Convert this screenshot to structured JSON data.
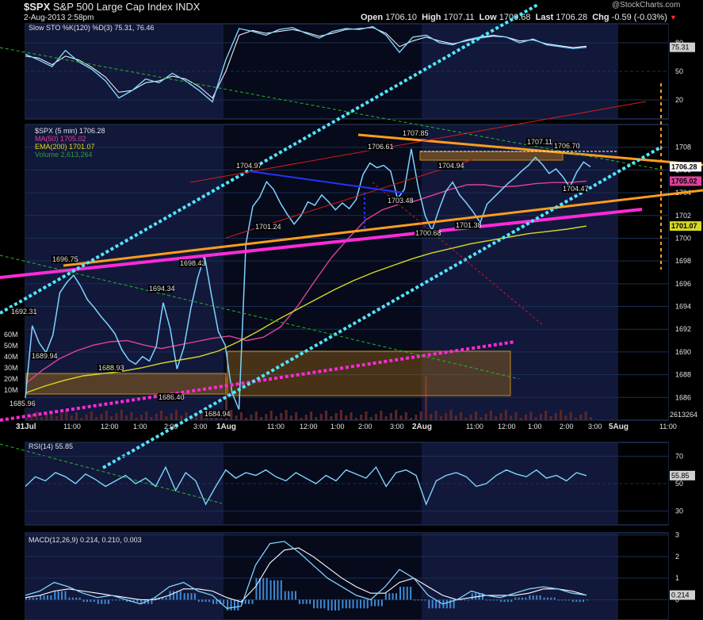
{
  "header": {
    "symbol": "$SPX",
    "name": "S&P 500 Large Cap Index",
    "exchange": "INDX",
    "date_time": "2-Aug-2013 2:58pm",
    "open_label": "Open",
    "open": "1706.10",
    "high_label": "High",
    "high": "1707.11",
    "low_label": "Low",
    "low": "1700.68",
    "last_label": "Last",
    "last": "1706.28",
    "chg_label": "Chg",
    "chg": "-0.59 (-0.03%)",
    "watermark": "@StockCharts.com"
  },
  "colors": {
    "background": "#000000",
    "price": "#7fd3ff",
    "ma50": "#e0409a",
    "ema200": "#d8d820",
    "trend_orange": "#ff9d1c",
    "trend_magenta": "#ff2ad8",
    "channel_cyan": "#4fe6ff",
    "grid": "#1b2f55"
  },
  "chart_data": [
    {
      "type": "line",
      "title": "Slow STO %K(120) %D(3) 75.31, 76.46",
      "ylim": [
        0,
        100
      ],
      "y_ticks": [
        "80",
        "50",
        "20"
      ],
      "last_value": "75.31",
      "series": [
        {
          "name": "%K(120)",
          "values": [
            68,
            62,
            55,
            72,
            60,
            52,
            40,
            22,
            30,
            42,
            38,
            48,
            40,
            30,
            18,
            62,
            95,
            92,
            88,
            94,
            96,
            90,
            85,
            92,
            95,
            94,
            97,
            88,
            70,
            86,
            88,
            80,
            78,
            83,
            86,
            88,
            86,
            80,
            84,
            78,
            76,
            74,
            75.31
          ]
        },
        {
          "name": "%D(3)",
          "values": [
            66,
            64,
            57,
            66,
            62,
            54,
            44,
            28,
            30,
            38,
            40,
            45,
            42,
            34,
            22,
            50,
            88,
            93,
            90,
            92,
            94,
            91,
            87,
            90,
            94,
            95,
            96,
            90,
            76,
            82,
            86,
            82,
            79,
            82,
            85,
            87,
            86,
            82,
            83,
            79,
            77,
            75,
            76.46
          ]
        }
      ]
    },
    {
      "type": "line",
      "title": "$SPX (5 min) 1706.28",
      "ylim": [
        1684,
        1710
      ],
      "y_ticks": [
        "1708",
        "1706",
        "1704",
        "1702",
        "1700",
        "1698",
        "1696",
        "1694",
        "1692",
        "1690",
        "1688",
        "1686"
      ],
      "x_labels": [
        "31Jul",
        "11:00",
        "12:00",
        "1:00",
        "2:00",
        "3:00",
        "1Aug",
        "11:00",
        "12:00",
        "1:00",
        "2:00",
        "3:00",
        "2Aug",
        "11:00",
        "12:00",
        "1:00",
        "2:00",
        "3:00",
        "5Aug",
        "11:00"
      ],
      "legend": [
        "$SPX (5 min) 1706.28",
        "MA(50) 1705.02",
        "EMA(200) 1701.07",
        "Volume 2,613,264"
      ],
      "price_tags": [
        "1706.28",
        "1705.02",
        "1701.07"
      ],
      "volume_tags": [
        "60M",
        "50M",
        "40M",
        "30M",
        "20M",
        "10M",
        "2613264"
      ],
      "annotations": [
        "1692.31",
        "1689.94",
        "1696.75",
        "1688.93",
        "1694.34",
        "1698.43",
        "1686.40",
        "1685.96",
        "1684.94",
        "1704.97",
        "1701.24",
        "1706.61",
        "1707.85",
        "1703.48",
        "1704.94",
        "1700.68",
        "1701.38",
        "1707.11",
        "1706.70",
        "1704.47"
      ],
      "series": [
        {
          "name": "$SPX",
          "x": [
            0,
            2,
            4,
            6,
            8,
            10,
            12,
            14,
            16,
            18,
            20,
            22,
            24,
            26,
            28,
            30,
            32,
            34,
            36,
            38,
            40,
            42,
            44,
            46,
            48,
            50,
            52,
            54,
            56,
            58,
            60,
            62,
            64,
            66,
            68,
            70,
            72,
            74,
            76,
            78,
            80,
            82,
            84,
            86,
            88,
            90,
            92,
            94,
            96,
            98,
            100,
            102,
            104,
            106,
            108,
            110,
            112,
            114,
            116,
            118,
            120,
            122,
            124,
            126,
            128,
            130,
            132,
            134,
            136,
            138,
            140,
            142,
            144,
            146,
            148,
            150,
            152,
            154,
            156,
            158,
            160,
            162,
            164,
            166,
            168,
            170,
            172,
            174,
            176,
            178,
            180,
            182,
            184,
            186,
            188,
            190,
            192,
            194,
            196,
            198,
            200,
            202,
            204,
            206,
            208,
            210,
            212,
            214,
            216,
            218,
            220,
            222,
            224,
            226,
            228,
            230,
            232,
            234
          ],
          "values": [
            1685.96,
            1692.31,
            1690.8,
            1689.94,
            1691.5,
            1695.2,
            1696.1,
            1696.75,
            1695.8,
            1694.6,
            1693.9,
            1693.1,
            1692.4,
            1691.6,
            1690.2,
            1689.3,
            1688.93,
            1689.6,
            1689.2,
            1690.5,
            1694.34,
            1692.1,
            1688.5,
            1690.4,
            1693.8,
            1696.5,
            1698.43,
            1695.0,
            1691.8,
            1690.6,
            1686.4,
            1684.94,
            1699.5,
            1702.8,
            1703.6,
            1704.97,
            1704.3,
            1703.1,
            1702.1,
            1701.24,
            1702.0,
            1703.2,
            1702.9,
            1703.8,
            1703.2,
            1702.5,
            1703.1,
            1702.6,
            1703.4,
            1705.6,
            1706.61,
            1706.2,
            1706.4,
            1705.9,
            1703.48,
            1704.3,
            1707.85,
            1704.5,
            1702.0,
            1700.68,
            1702.5,
            1704.1,
            1704.94,
            1703.8,
            1703.1,
            1702.3,
            1701.38,
            1703.0,
            1703.6,
            1704.2,
            1704.8,
            1705.3,
            1705.9,
            1706.4,
            1707.11,
            1706.5,
            1705.7,
            1706.1,
            1705.4,
            1704.47,
            1705.8,
            1706.7,
            1706.28,
            1706.28,
            1706.28,
            1706.28,
            1706.28,
            1706.28,
            1706.28,
            1706.28,
            1706.28,
            1706.28,
            1706.28,
            1706.28,
            1706.28,
            1706.28,
            1706.28,
            1706.28,
            1706.28,
            1706.28,
            1706.28,
            1706.28,
            1706.28,
            1706.28,
            1706.28,
            1706.28,
            1706.28,
            1706.28,
            1706.28,
            1706.28,
            1706.28,
            1706.28,
            1706.28,
            1706.28,
            1706.28,
            1706.28,
            1706.28,
            1706.28
          ]
        },
        {
          "name": "MA(50)",
          "values": [
            1687.2,
            1688.4,
            1689.4,
            1690.1,
            1690.6,
            1690.9,
            1691.0,
            1690.6,
            1690.3,
            1690.6,
            1690.9,
            1691.2,
            1691.4,
            1691.0,
            1691.3,
            1692.2,
            1694.0,
            1696.2,
            1698.3,
            1700.0,
            1701.6,
            1702.5,
            1703.0,
            1703.3,
            1703.8,
            1704.3,
            1704.7,
            1704.7,
            1704.5,
            1704.6,
            1704.8,
            1704.9,
            1704.9,
            1705.02
          ]
        },
        {
          "name": "EMA(200)",
          "values": [
            1686.4,
            1687.0,
            1687.5,
            1687.9,
            1688.1,
            1688.3,
            1688.6,
            1689.0,
            1689.3,
            1689.6,
            1690.1,
            1690.9,
            1691.8,
            1692.8,
            1693.7,
            1694.6,
            1695.5,
            1696.3,
            1697.0,
            1697.6,
            1698.2,
            1698.7,
            1699.1,
            1699.5,
            1699.8,
            1700.1,
            1700.4,
            1700.6,
            1700.8,
            1701.07
          ]
        }
      ]
    },
    {
      "type": "line",
      "title": "RSI(14) 55.85",
      "ylim": [
        20,
        80
      ],
      "y_ticks": [
        "70",
        "50",
        "30"
      ],
      "last_value": "55.85",
      "series": [
        {
          "name": "RSI(14)",
          "values": [
            48,
            55,
            52,
            58,
            55,
            50,
            57,
            53,
            48,
            52,
            56,
            50,
            54,
            48,
            62,
            45,
            58,
            52,
            35,
            48,
            60,
            54,
            58,
            56,
            60,
            55,
            52,
            58,
            54,
            50,
            56,
            52,
            60,
            57,
            54,
            62,
            48,
            58,
            60,
            56,
            35,
            52,
            56,
            58,
            55,
            48,
            50,
            56,
            60,
            57,
            55,
            60,
            54,
            56,
            52,
            58,
            55.85
          ]
        }
      ]
    },
    {
      "type": "bar",
      "title": "MACD(12,26,9) 0.214, 0.210, 0.003",
      "ylim": [
        -1,
        3
      ],
      "y_ticks": [
        "3",
        "2",
        "1",
        "0"
      ],
      "last_value": "0.214",
      "series": [
        {
          "name": "MACD",
          "values": [
            0.2,
            0.4,
            0.8,
            0.6,
            0.3,
            0.1,
            0.2,
            0.0,
            -0.2,
            0.1,
            0.6,
            0.8,
            0.4,
            0.2,
            -0.4,
            -0.3,
            1.6,
            2.6,
            2.7,
            2.2,
            1.6,
            1.0,
            0.6,
            0.2,
            0.0,
            0.6,
            1.4,
            1.0,
            0.2,
            -0.2,
            0.0,
            0.4,
            0.2,
            0.1,
            0.3,
            0.5,
            0.6,
            0.5,
            0.3,
            0.214
          ]
        },
        {
          "name": "Signal",
          "values": [
            0.1,
            0.2,
            0.4,
            0.5,
            0.4,
            0.3,
            0.2,
            0.1,
            0.0,
            0.0,
            0.2,
            0.5,
            0.5,
            0.4,
            0.1,
            -0.1,
            0.6,
            1.7,
            2.3,
            2.4,
            2.0,
            1.5,
            1.0,
            0.6,
            0.3,
            0.3,
            0.8,
            1.0,
            0.6,
            0.2,
            0.0,
            0.1,
            0.2,
            0.2,
            0.2,
            0.3,
            0.5,
            0.5,
            0.4,
            0.21
          ]
        },
        {
          "name": "Histogram",
          "values": [
            0.1,
            0.2,
            0.4,
            0.1,
            -0.1,
            -0.2,
            0.0,
            -0.1,
            -0.2,
            0.1,
            0.4,
            0.3,
            -0.1,
            -0.2,
            -0.5,
            -0.2,
            1.0,
            0.9,
            0.4,
            -0.2,
            -0.4,
            -0.5,
            -0.4,
            -0.4,
            -0.3,
            0.3,
            0.6,
            0.0,
            -0.4,
            -0.4,
            0.0,
            0.3,
            0.0,
            -0.1,
            0.1,
            0.2,
            0.1,
            0.0,
            -0.1,
            0.003
          ]
        }
      ]
    }
  ]
}
